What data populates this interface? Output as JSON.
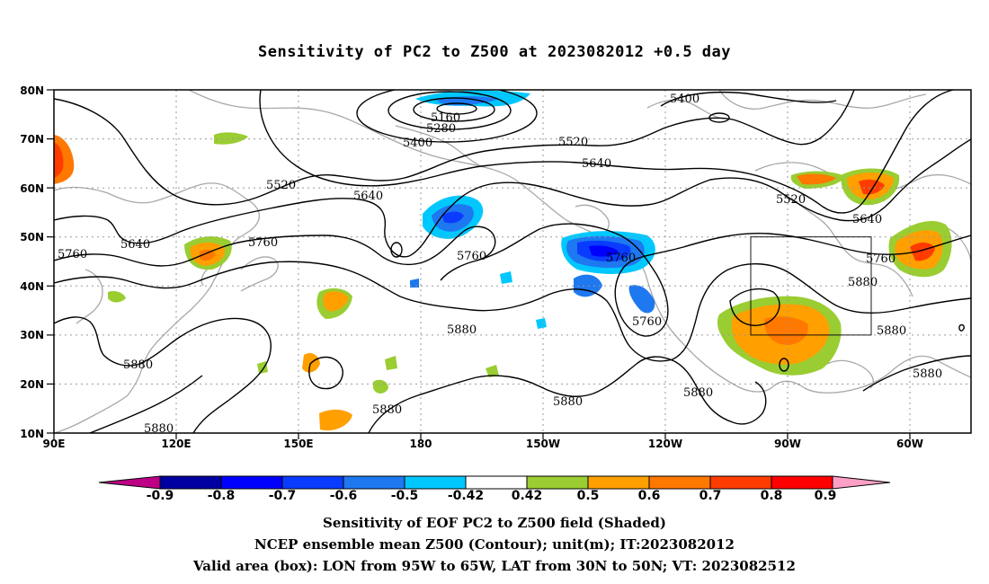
{
  "title": "Sensitivity of PC2 to Z500 at 2023082012 +0.5 day",
  "map": {
    "lat_labels": [
      "80N",
      "70N",
      "60N",
      "50N",
      "40N",
      "30N",
      "20N",
      "10N"
    ],
    "lon_labels": [
      "90E",
      "120E",
      "150E",
      "180",
      "150W",
      "120W",
      "90W",
      "60W"
    ],
    "contour_labels": [
      "5160",
      "5280",
      "5400",
      "5400",
      "5520",
      "5520",
      "5520",
      "5640",
      "5640",
      "5640",
      "5640",
      "5760",
      "5760",
      "5760",
      "5760",
      "5760",
      "5760",
      "5880",
      "5880",
      "5880",
      "5880",
      "5880",
      "5880",
      "5880",
      "5880",
      "5880"
    ],
    "valid_box": {
      "lon_from": "95W",
      "lon_to": "65W",
      "lat_from": "30N",
      "lat_to": "50N"
    }
  },
  "colorbar": {
    "labels": [
      "-0.9",
      "-0.8",
      "-0.7",
      "-0.6",
      "-0.5",
      "-0.42",
      "0.42",
      "0.5",
      "0.6",
      "0.7",
      "0.8",
      "0.9"
    ],
    "colors": [
      "#bd0086",
      "#0000a0",
      "#0000ff",
      "#0a3cff",
      "#1e78f0",
      "#00c8ff",
      "#ffffff",
      "#9acd32",
      "#ff9f00",
      "#ff7800",
      "#ff3c00",
      "#ff0000",
      "#ff9fc7"
    ]
  },
  "footer": {
    "line1": "Sensitivity of EOF PC2 to Z500 field (Shaded)",
    "line2": "NCEP ensemble mean Z500 (Contour); unit(m); IT:2023082012",
    "line3": "Valid area (box): LON from 95W to 65W, LAT from 30N to 50N; VT: 2023082512"
  }
}
